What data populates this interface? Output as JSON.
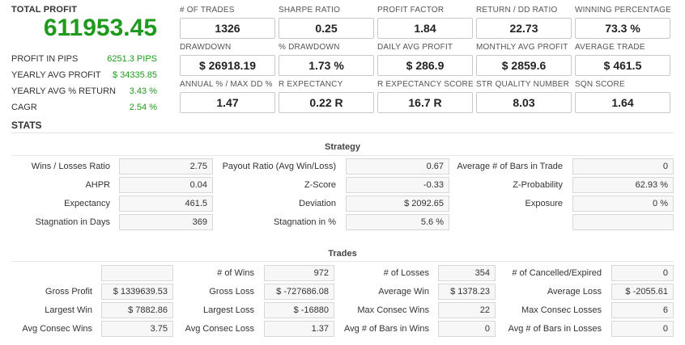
{
  "summary": {
    "total_profit_label": "TOTAL PROFIT",
    "total_profit_value": "611953.45",
    "rows": [
      {
        "label": "PROFIT IN PIPS",
        "value": "6251.3 PIPS"
      },
      {
        "label": "YEARLY AVG PROFIT",
        "value": "$ 34335.85"
      },
      {
        "label": "YEARLY AVG % RETURN",
        "value": "3.43 %"
      },
      {
        "label": "CAGR",
        "value": "2.54 %"
      }
    ]
  },
  "metrics": [
    {
      "label": "# OF TRADES",
      "value": "1326"
    },
    {
      "label": "SHARPE RATIO",
      "value": "0.25"
    },
    {
      "label": "PROFIT FACTOR",
      "value": "1.84"
    },
    {
      "label": "RETURN / DD RATIO",
      "value": "22.73"
    },
    {
      "label": "WINNING PERCENTAGE",
      "value": "73.3 %"
    },
    {
      "label": "DRAWDOWN",
      "value": "$ 26918.19"
    },
    {
      "label": "% DRAWDOWN",
      "value": "1.73 %"
    },
    {
      "label": "DAILY AVG PROFIT",
      "value": "$ 286.9"
    },
    {
      "label": "MONTHLY AVG PROFIT",
      "value": "$ 2859.6"
    },
    {
      "label": "AVERAGE TRADE",
      "value": "$ 461.5"
    },
    {
      "label": "ANNUAL % / MAX DD %",
      "value": "1.47"
    },
    {
      "label": "R EXPECTANCY",
      "value": "0.22 R"
    },
    {
      "label": "R EXPECTANCY SCORE",
      "value": "16.7 R"
    },
    {
      "label": "STR QUALITY NUMBER",
      "value": "8.03"
    },
    {
      "label": "SQN SCORE",
      "value": "1.64"
    }
  ],
  "stats_title": "STATS",
  "strategy": {
    "title": "Strategy",
    "rows": [
      [
        {
          "label": "Wins / Losses Ratio",
          "value": "2.75"
        },
        {
          "label": "Payout Ratio (Avg Win/Loss)",
          "value": "0.67"
        },
        {
          "label": "Average # of Bars in Trade",
          "value": "0"
        }
      ],
      [
        {
          "label": "AHPR",
          "value": "0.04"
        },
        {
          "label": "Z-Score",
          "value": "-0.33"
        },
        {
          "label": "Z-Probability",
          "value": "62.93 %"
        }
      ],
      [
        {
          "label": "Expectancy",
          "value": "461.5"
        },
        {
          "label": "Deviation",
          "value": "$ 2092.65"
        },
        {
          "label": "Exposure",
          "value": "0 %"
        }
      ],
      [
        {
          "label": "Stagnation in Days",
          "value": "369"
        },
        {
          "label": "Stagnation in %",
          "value": "5.6 %"
        },
        {
          "label": "",
          "value": ""
        }
      ]
    ]
  },
  "trades": {
    "title": "Trades",
    "rows": [
      [
        {
          "label": "",
          "value": ""
        },
        {
          "label": "# of Wins",
          "value": "972"
        },
        {
          "label": "# of Losses",
          "value": "354"
        },
        {
          "label": "# of Cancelled/Expired",
          "value": "0"
        }
      ],
      [
        {
          "label": "Gross Profit",
          "value": "$ 1339639.53"
        },
        {
          "label": "Gross Loss",
          "value": "$ -727686.08"
        },
        {
          "label": "Average Win",
          "value": "$ 1378.23"
        },
        {
          "label": "Average Loss",
          "value": "$ -2055.61"
        }
      ],
      [
        {
          "label": "Largest Win",
          "value": "$ 7882.86"
        },
        {
          "label": "Largest Loss",
          "value": "$ -16880"
        },
        {
          "label": "Max Consec Wins",
          "value": "22"
        },
        {
          "label": "Max Consec Losses",
          "value": "6"
        }
      ],
      [
        {
          "label": "Avg Consec Wins",
          "value": "3.75"
        },
        {
          "label": "Avg Consec Loss",
          "value": "1.37"
        },
        {
          "label": "Avg # of Bars in Wins",
          "value": "0"
        },
        {
          "label": "Avg # of Bars in Losses",
          "value": "0"
        }
      ]
    ]
  }
}
